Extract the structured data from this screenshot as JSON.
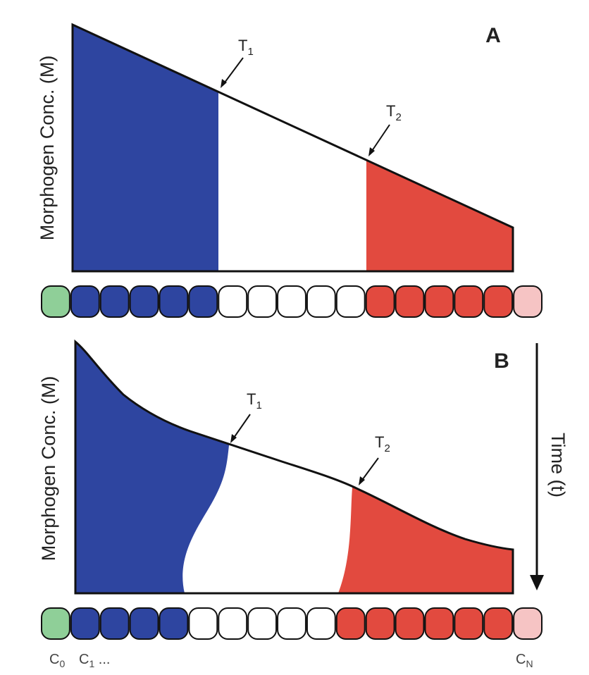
{
  "panels": [
    {
      "label": "A",
      "y_axis_label": "Morphogen Conc. (M)",
      "thresholds": [
        {
          "base": "T",
          "sub": "1"
        },
        {
          "base": "T",
          "sub": "2"
        }
      ]
    },
    {
      "label": "B",
      "y_axis_label": "Morphogen Conc. (M)",
      "thresholds": [
        {
          "base": "T",
          "sub": "1"
        },
        {
          "base": "T",
          "sub": "2"
        }
      ],
      "time_label": "Time (t)"
    }
  ],
  "cell_labels": [
    {
      "base": "C",
      "sub": "0"
    },
    {
      "base": "C",
      "sub": "1",
      "suffix": " ..."
    },
    {
      "base": "C",
      "sub": "N"
    }
  ]
}
